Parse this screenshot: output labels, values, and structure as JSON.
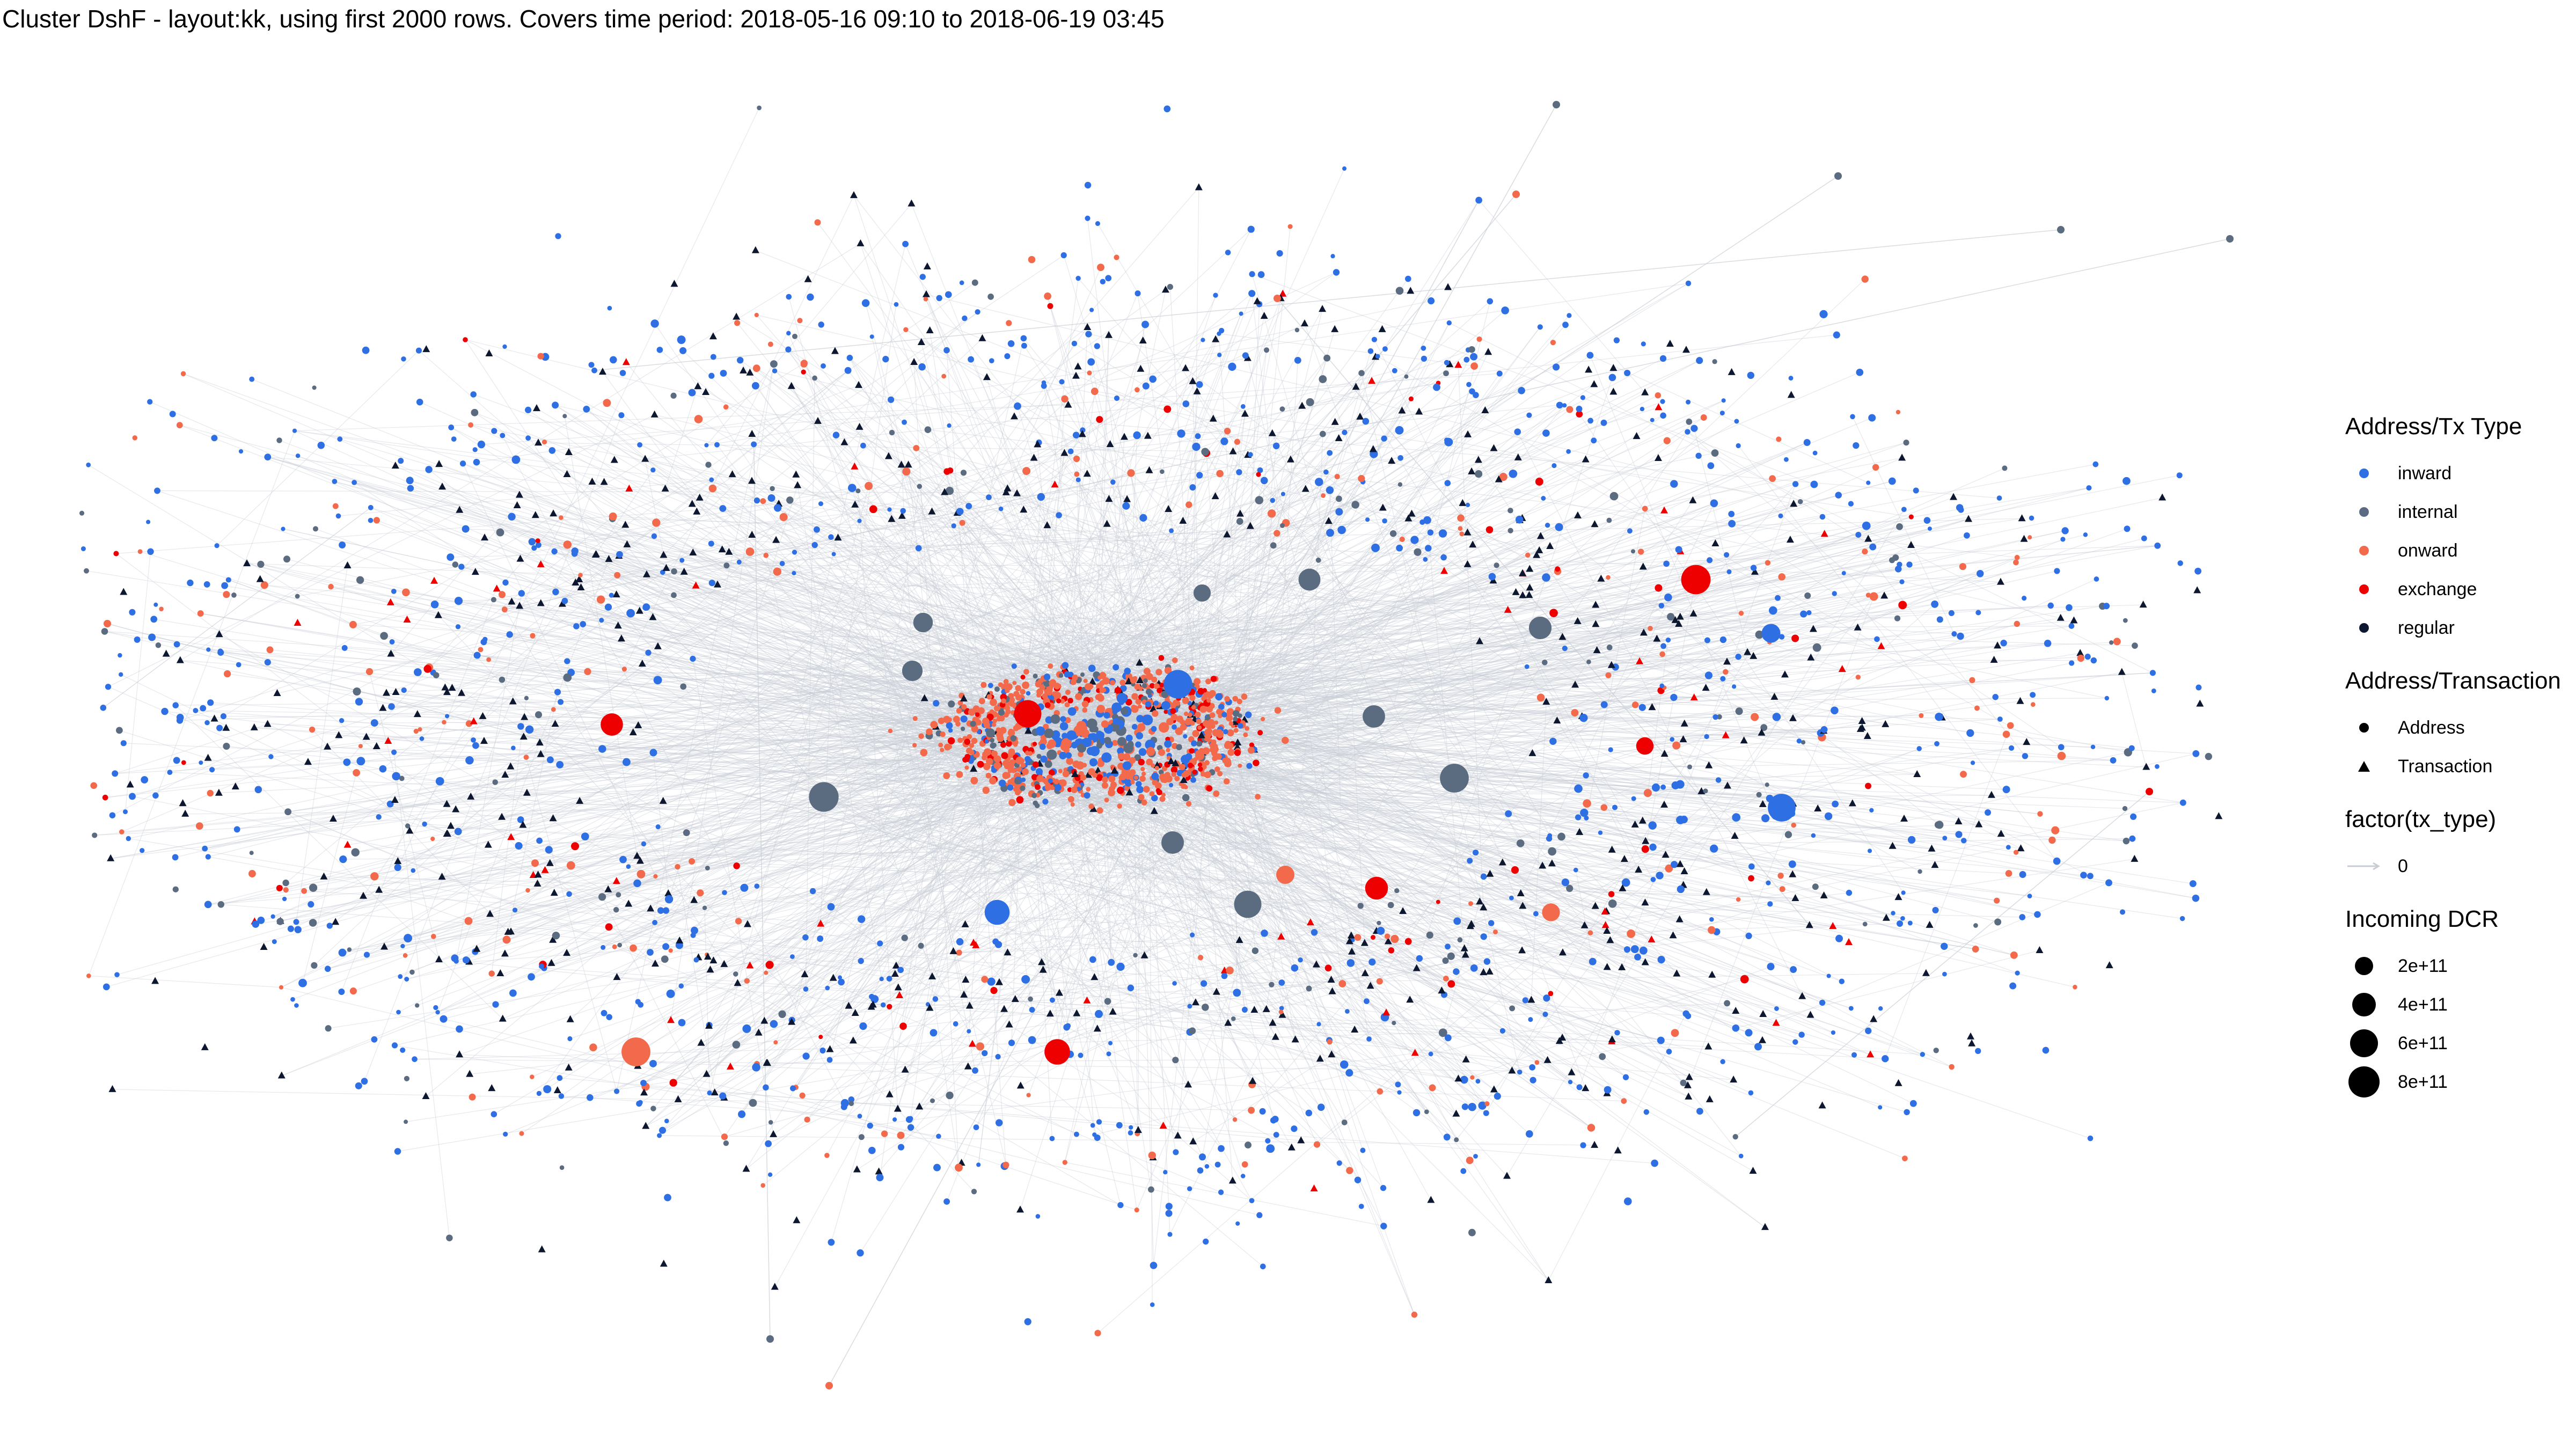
{
  "title": "Cluster DshF - layout:kk, using first 2000 rows. Covers time period: 2018-05-16 09:10 to 2018-06-19 03:45",
  "legend": {
    "type_title": "Address/Tx Type",
    "types": [
      {
        "label": "inward",
        "color": "#2f6fe4"
      },
      {
        "label": "internal",
        "color": "#5b6b80"
      },
      {
        "label": "onward",
        "color": "#f26a4b"
      },
      {
        "label": "exchange",
        "color": "#ee0000"
      },
      {
        "label": "regular",
        "color": "#0d1830"
      }
    ],
    "shape_title": "Address/Transaction",
    "shapes": [
      {
        "label": "Address",
        "shape": "circle"
      },
      {
        "label": "Transaction",
        "shape": "triangle"
      }
    ],
    "edge_title": "factor(tx_type)",
    "edges": [
      {
        "label": "0",
        "color": "#c8cdd4"
      }
    ],
    "size_title": "Incoming DCR",
    "sizes": [
      {
        "label": "2e+11",
        "value": 200000000000
      },
      {
        "label": "4e+11",
        "value": 400000000000
      },
      {
        "label": "6e+11",
        "value": 600000000000
      },
      {
        "label": "8e+11",
        "value": 800000000000
      }
    ]
  },
  "graph": {
    "rows": 2000,
    "layout": "kk",
    "edge_color": "#c8cdd4",
    "node_colors": {
      "inward": "#2f6fe4",
      "internal": "#5b6b80",
      "onward": "#f26a4b",
      "exchange": "#ee0000",
      "regular": "#0d1830"
    }
  }
}
